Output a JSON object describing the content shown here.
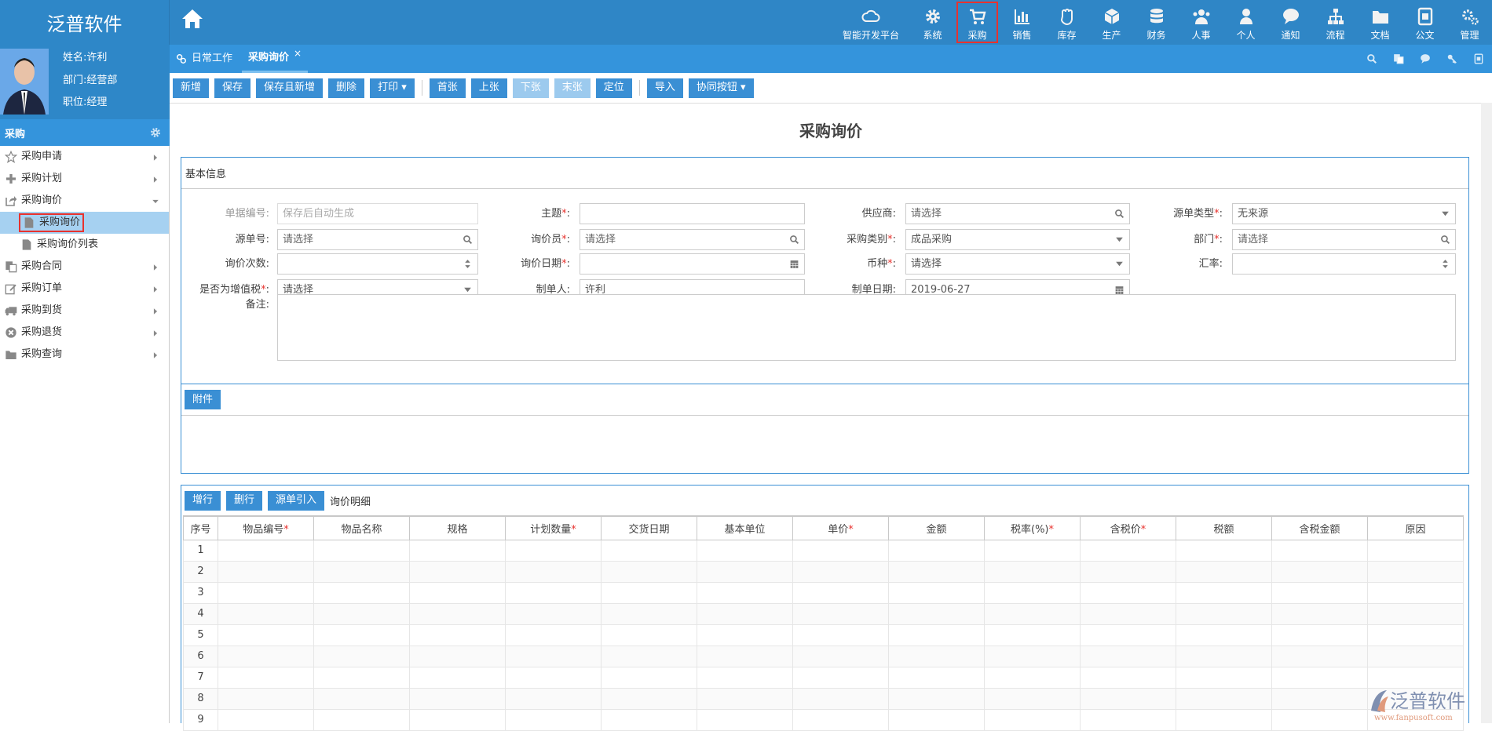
{
  "app": {
    "logo": "泛普软件"
  },
  "modules": [
    {
      "label": "智能开发平台",
      "icon": "cloud-icon"
    },
    {
      "label": "系统",
      "icon": "gear-icon"
    },
    {
      "label": "采购",
      "icon": "cart-icon",
      "active": true
    },
    {
      "label": "销售",
      "icon": "bar-chart-icon"
    },
    {
      "label": "库存",
      "icon": "hand-icon"
    },
    {
      "label": "生产",
      "icon": "cube-icon"
    },
    {
      "label": "财务",
      "icon": "database-icon"
    },
    {
      "label": "人事",
      "icon": "users-icon"
    },
    {
      "label": "个人",
      "icon": "user-icon"
    },
    {
      "label": "通知",
      "icon": "chat-icon"
    },
    {
      "label": "流程",
      "icon": "sitemap-icon"
    },
    {
      "label": "文档",
      "icon": "folder-icon"
    },
    {
      "label": "公文",
      "icon": "document-icon"
    },
    {
      "label": "管理",
      "icon": "gears-icon"
    }
  ],
  "user": {
    "name": "姓名:许利",
    "dept": "部门:经营部",
    "position": "职位:经理"
  },
  "sidebar": {
    "title": "采购",
    "items": [
      {
        "label": "采购申请",
        "icon": "star-icon"
      },
      {
        "label": "采购计划",
        "icon": "plus-icon"
      },
      {
        "label": "采购询价",
        "icon": "share-icon",
        "expanded": true
      },
      {
        "label": "采购询价",
        "icon": "file-icon",
        "sub": true,
        "selected": true
      },
      {
        "label": "采购询价列表",
        "icon": "file-icon",
        "sub": true
      },
      {
        "label": "采购合同",
        "icon": "copy-icon"
      },
      {
        "label": "采购订单",
        "icon": "edit-icon"
      },
      {
        "label": "采购到货",
        "icon": "truck-icon"
      },
      {
        "label": "采购退货",
        "icon": "times-circle-icon"
      },
      {
        "label": "采购查询",
        "icon": "folder-icon"
      }
    ]
  },
  "tabs": [
    {
      "label": "日常工作"
    },
    {
      "label": "采购询价",
      "active": true,
      "close": "×"
    }
  ],
  "toolbar": [
    {
      "label": "新增"
    },
    {
      "label": "保存"
    },
    {
      "label": "保存且新增"
    },
    {
      "label": "删除"
    },
    {
      "label": "打印 ▾"
    },
    {
      "sep": true
    },
    {
      "label": "首张"
    },
    {
      "label": "上张"
    },
    {
      "label": "下张",
      "disabled": true
    },
    {
      "label": "末张",
      "disabled": true
    },
    {
      "label": "定位"
    },
    {
      "sep": true
    },
    {
      "label": "导入"
    },
    {
      "label": "协同按钮 ▾"
    }
  ],
  "page_title": "采购询价",
  "basic": {
    "title": "基本信息",
    "fields": {
      "doc_no": {
        "label": "单据编号:",
        "placeholder": "保存后自动生成"
      },
      "subject": {
        "label": "主题",
        "value": ""
      },
      "supplier": {
        "label": "供应商:",
        "placeholder": "请选择"
      },
      "source_type": {
        "label": "源单类型",
        "value": "无来源"
      },
      "source_no": {
        "label": "源单号:",
        "placeholder": "请选择"
      },
      "inquirer": {
        "label": "询价员",
        "placeholder": "请选择"
      },
      "category": {
        "label": "采购类别",
        "value": "成品采购"
      },
      "dept": {
        "label": "部门",
        "placeholder": "请选择"
      },
      "count": {
        "label": "询价次数:",
        "value": ""
      },
      "date": {
        "label": "询价日期",
        "value": ""
      },
      "currency": {
        "label": "币种",
        "value": "请选择"
      },
      "rate": {
        "label": "汇率:",
        "value": ""
      },
      "vat": {
        "label": "是否为增值税",
        "value": "请选择"
      },
      "creator": {
        "label": "制单人:",
        "value": "许利"
      },
      "created": {
        "label": "制单日期:",
        "value": "2019-06-27"
      },
      "remark": {
        "label": "备注:",
        "value": ""
      }
    }
  },
  "attach": {
    "button": "附件"
  },
  "detail": {
    "buttons": [
      "增行",
      "删行",
      "源单引入"
    ],
    "title": "询价明细",
    "columns": [
      {
        "label": "序号"
      },
      {
        "label": "物品编号",
        "req": true
      },
      {
        "label": "物品名称"
      },
      {
        "label": "规格"
      },
      {
        "label": "计划数量",
        "req": true
      },
      {
        "label": "交货日期"
      },
      {
        "label": "基本单位"
      },
      {
        "label": "单价",
        "req": true
      },
      {
        "label": "金额"
      },
      {
        "label": "税率(%)",
        "req": true
      },
      {
        "label": "含税价",
        "req": true
      },
      {
        "label": "税额"
      },
      {
        "label": "含税金额"
      },
      {
        "label": "原因"
      }
    ],
    "rows": [
      "1",
      "2",
      "3",
      "4",
      "5",
      "6",
      "7",
      "8",
      "9"
    ]
  },
  "watermark": {
    "brand": "泛普软件",
    "url": "www.fanpusoft.com"
  },
  "colors": {
    "primary": "#2f86c6",
    "accent": "#3a8fd4",
    "highlight": "#e8322e"
  }
}
